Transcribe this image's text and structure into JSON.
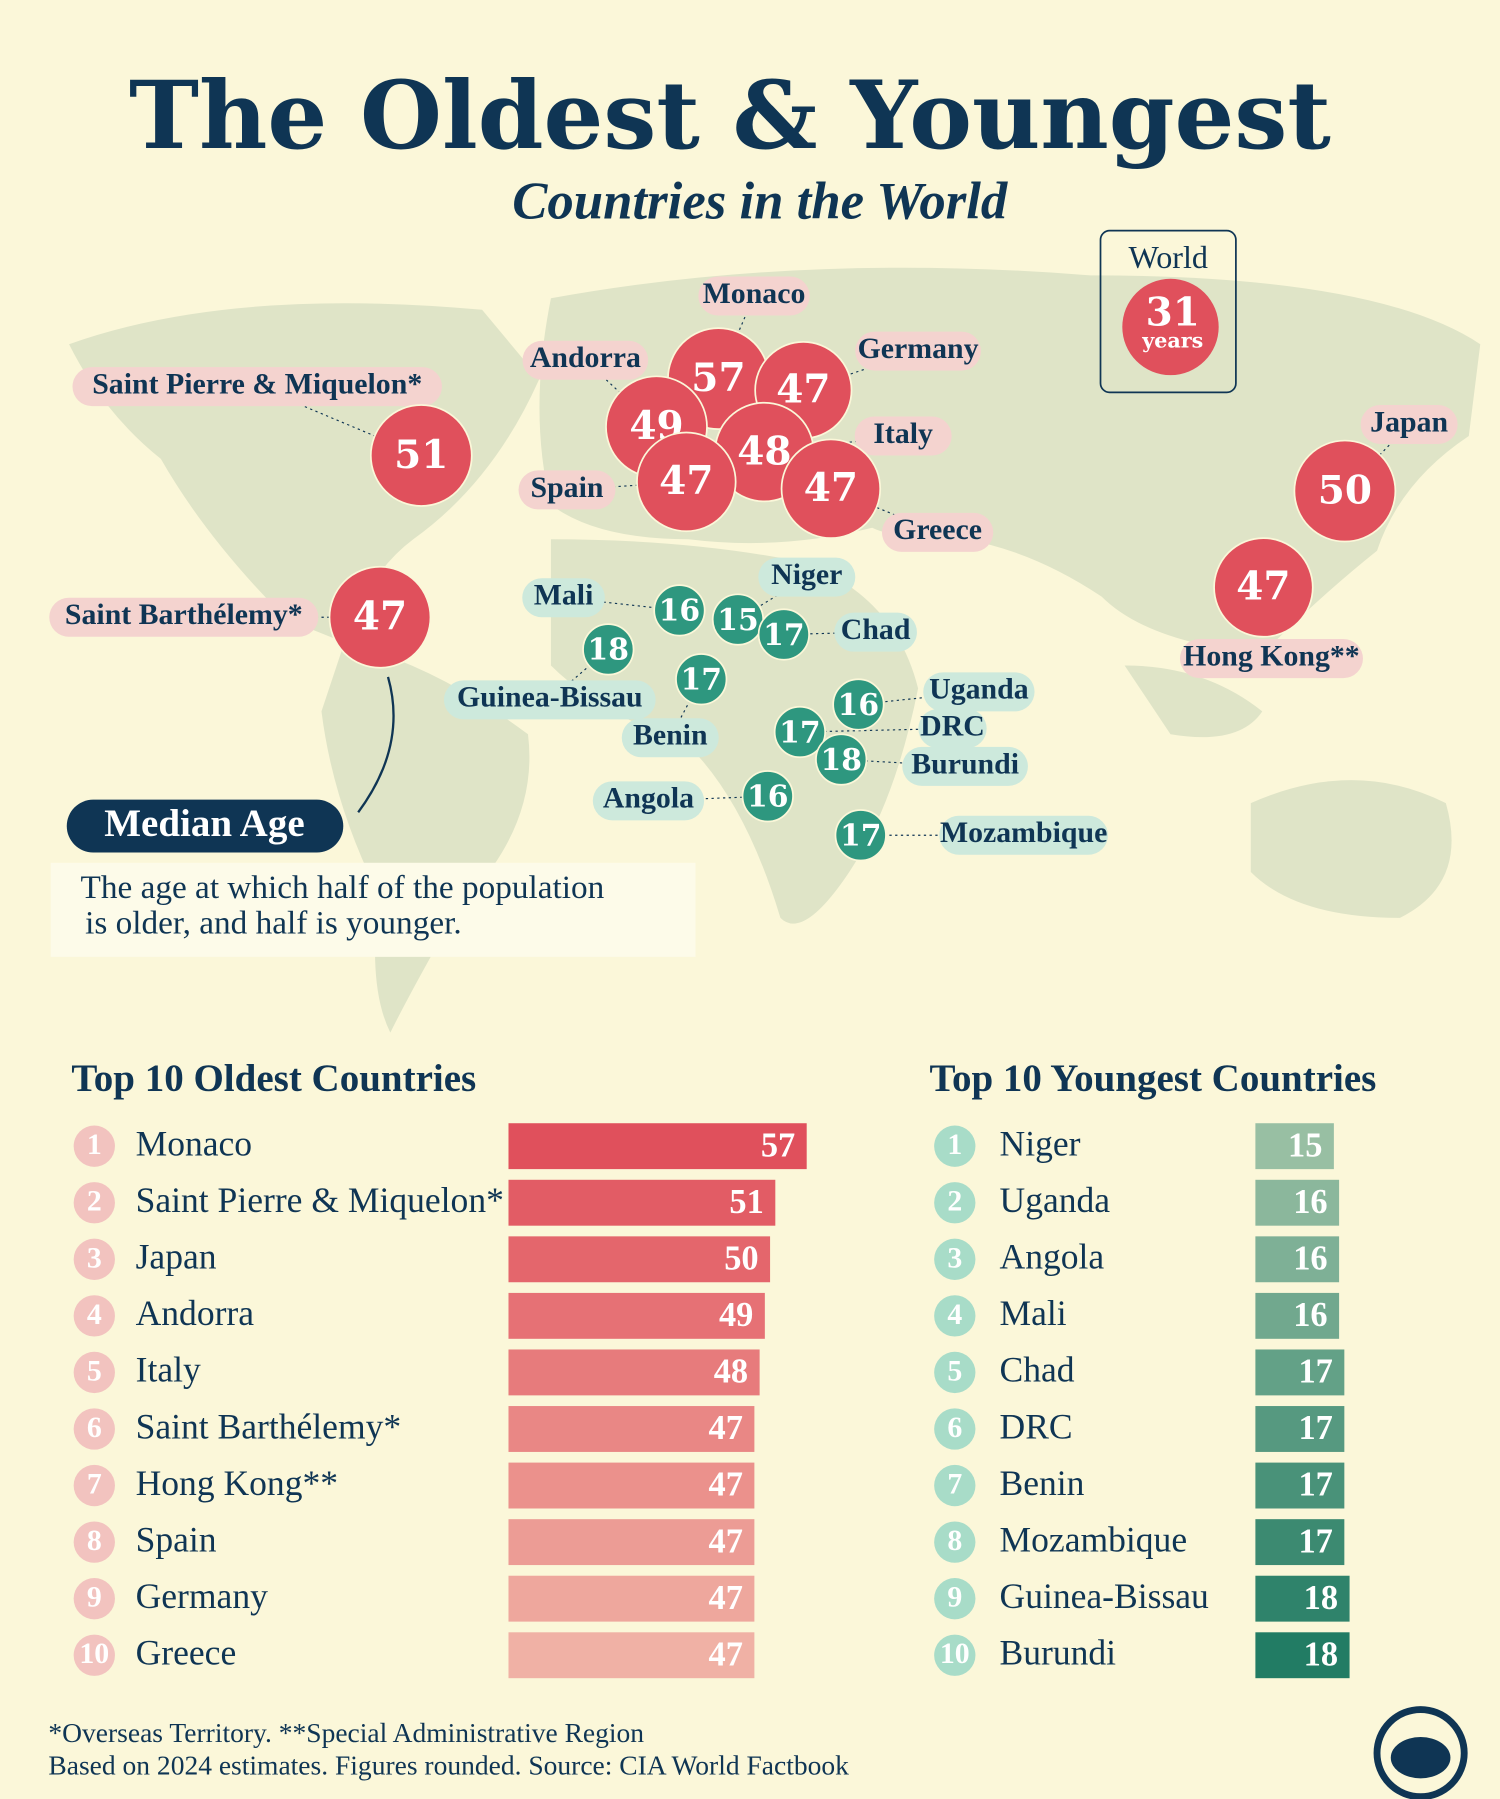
{
  "title": "The Oldest & Youngest",
  "subtitle": "Countries in the World",
  "world": {
    "label": "World",
    "value": 31,
    "unit": "years"
  },
  "map": {
    "oldest": {
      "color": "#e0505c",
      "pill": "#f4d3cf",
      "points": [
        {
          "label": "Monaco",
          "value": 57
        },
        {
          "label": "Germany",
          "value": 47
        },
        {
          "label": "Andorra",
          "value": 49
        },
        {
          "label": "Italy",
          "value": 48
        },
        {
          "label": "Spain",
          "value": 47
        },
        {
          "label": "Greece",
          "value": 47
        },
        {
          "label": "Saint Pierre & Miquelon*",
          "value": 51
        },
        {
          "label": "Saint Barthélemy*",
          "value": 47
        },
        {
          "label": "Japan",
          "value": 50
        },
        {
          "label": "Hong Kong**",
          "value": 47
        }
      ]
    },
    "youngest": {
      "color": "#2e977f",
      "pill": "#cde9dc",
      "points": [
        {
          "label": "Mali",
          "value": 16
        },
        {
          "label": "Niger",
          "value": 15
        },
        {
          "label": "Chad",
          "value": 17
        },
        {
          "label": "Guinea-Bissau",
          "value": 18
        },
        {
          "label": "Benin",
          "value": 17
        },
        {
          "label": "Uganda",
          "value": 16
        },
        {
          "label": "DRC",
          "value": 17
        },
        {
          "label": "Burundi",
          "value": 18
        },
        {
          "label": "Angola",
          "value": 16
        },
        {
          "label": "Mozambique",
          "value": 17
        }
      ]
    }
  },
  "definition": {
    "heading": "Median Age",
    "lines": [
      "The age at which half of the population",
      "is older, and half is younger."
    ]
  },
  "chart_data": [
    {
      "type": "bar",
      "title": "Top 10 Oldest Countries",
      "color": "#e0505c",
      "ranks": [
        1,
        2,
        3,
        4,
        5,
        6,
        7,
        8,
        9,
        10
      ],
      "categories": [
        "Monaco",
        "Saint Pierre & Miquelon*",
        "Japan",
        "Andorra",
        "Italy",
        "Saint Barthélemy*",
        "Hong Kong**",
        "Spain",
        "Germany",
        "Greece"
      ],
      "values": [
        57,
        51,
        50,
        49,
        48,
        47,
        47,
        47,
        47,
        47
      ]
    },
    {
      "type": "bar",
      "title": "Top 10 Youngest Countries",
      "color": "#1f7a62",
      "ranks": [
        1,
        2,
        3,
        4,
        5,
        6,
        7,
        8,
        9,
        10
      ],
      "categories": [
        "Niger",
        "Uganda",
        "Angola",
        "Mali",
        "Chad",
        "DRC",
        "Benin",
        "Mozambique",
        "Guinea-Bissau",
        "Burundi"
      ],
      "values": [
        15,
        16,
        16,
        16,
        17,
        17,
        17,
        17,
        18,
        18
      ]
    }
  ],
  "footnotes": [
    "*Overseas Territory. **Special Administrative Region",
    "Based on 2024 estimates. Figures rounded. Source: CIA World Factbook"
  ]
}
